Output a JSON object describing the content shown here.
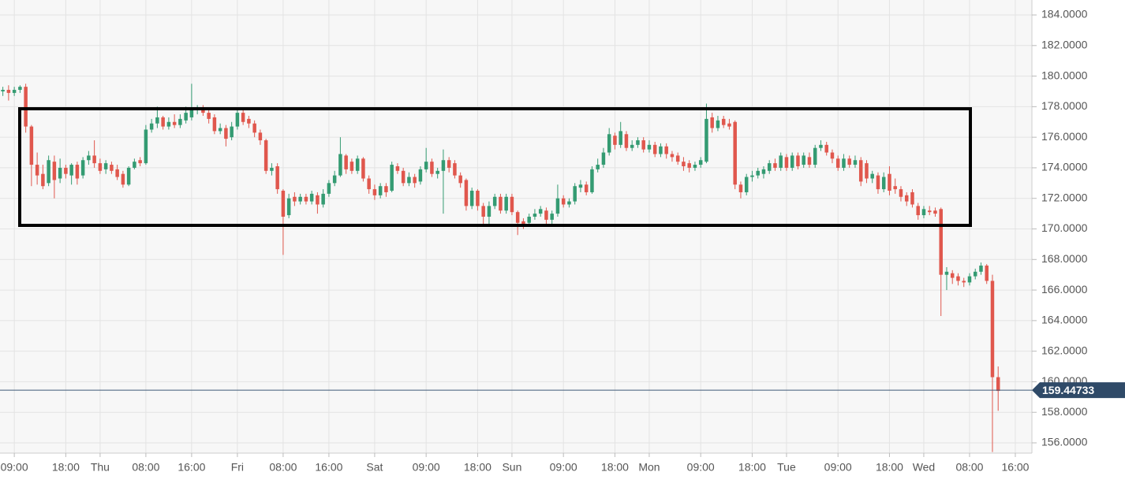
{
  "chart_data": {
    "type": "candlestick",
    "x": [
      -17,
      -16,
      -15,
      -14,
      -13,
      -12,
      -11,
      -10,
      -9,
      -8,
      -7,
      -6,
      -5,
      -4,
      -3,
      -2,
      -1,
      0,
      1,
      2,
      3,
      4,
      5,
      6,
      7,
      8,
      9,
      10,
      11,
      12,
      13,
      14,
      15,
      16,
      17,
      18,
      19,
      20,
      21,
      22,
      23,
      24,
      25,
      26,
      27,
      28,
      29,
      30,
      31,
      32,
      33,
      34,
      35,
      36,
      37,
      38,
      39,
      40,
      41,
      42,
      43,
      44,
      45,
      46,
      47,
      48,
      49,
      50,
      51,
      52,
      53,
      54,
      55,
      56,
      57,
      58,
      59,
      60,
      61,
      62,
      63,
      64,
      65,
      66,
      67,
      68,
      69,
      70,
      71,
      72,
      73,
      74,
      75,
      76,
      77,
      78,
      79,
      80,
      81,
      82,
      83,
      84,
      85,
      86,
      87,
      88,
      89,
      90,
      91,
      92,
      93,
      94,
      95,
      96,
      97,
      98,
      99,
      100,
      101,
      102,
      103,
      104,
      105,
      106,
      107,
      108,
      109,
      110,
      111,
      112,
      113,
      114,
      115,
      116,
      117,
      118,
      119,
      120,
      121,
      122,
      123,
      124,
      125,
      126,
      127,
      128,
      129,
      130,
      131,
      132,
      133,
      134,
      135,
      136,
      137,
      138,
      139,
      140,
      141,
      142,
      143,
      144,
      145,
      146,
      147,
      148,
      149,
      150,
      151,
      152,
      153,
      154,
      155,
      156,
      157
    ],
    "open": [
      179.0,
      179.1,
      178.9,
      179.1,
      179.3,
      176.7,
      174.2,
      173.6,
      173.0,
      174.4,
      173.3,
      174.0,
      173.5,
      174.2,
      173.5,
      174.5,
      174.8,
      174.3,
      173.9,
      174.2,
      173.9,
      173.6,
      172.9,
      174.0,
      174.5,
      174.3,
      176.5,
      176.9,
      177.3,
      176.7,
      177.0,
      176.8,
      177.1,
      177.3,
      177.8,
      177.9,
      177.6,
      177.3,
      176.4,
      176.6,
      176.0,
      176.7,
      177.6,
      177.2,
      176.9,
      176.3,
      175.8,
      173.8,
      174.1,
      172.5,
      170.9,
      172.1,
      171.8,
      172.1,
      171.8,
      172.2,
      171.6,
      172.3,
      173.0,
      173.5,
      174.8,
      174.4,
      173.8,
      174.6,
      173.3,
      172.6,
      172.2,
      172.8,
      172.5,
      174.1,
      173.8,
      173.0,
      173.4,
      173.1,
      173.9,
      174.4,
      173.6,
      173.8,
      174.5,
      174.3,
      173.5,
      173.2,
      171.5,
      172.5,
      171.5,
      170.8,
      171.5,
      172.1,
      171.2,
      172.1,
      171.1,
      170.5,
      170.4,
      170.8,
      171.0,
      171.2,
      170.6,
      171.0,
      172.0,
      171.6,
      171.8,
      172.7,
      172.9,
      172.4,
      173.9,
      174.2,
      175.0,
      176.1,
      175.5,
      176.2,
      175.3,
      175.5,
      175.8,
      175.2,
      175.5,
      174.9,
      175.4,
      174.9,
      174.8,
      174.4,
      174.3,
      174.0,
      174.2,
      174.4,
      177.3,
      176.6,
      177.2,
      176.9,
      177.0,
      172.9,
      172.4,
      173.4,
      173.5,
      173.6,
      173.8,
      174.3,
      174.0,
      174.7,
      174.0,
      174.8,
      174.2,
      174.7,
      174.2,
      175.3,
      175.5,
      175.0,
      174.6,
      174.0,
      174.6,
      174.2,
      174.5,
      174.3,
      173.3,
      173.5,
      172.6,
      173.6,
      172.8,
      172.6,
      172.2,
      172.4,
      171.5,
      170.9,
      171.2,
      171.2,
      171.3,
      167.0,
      167.1,
      166.9,
      166.6,
      166.5,
      166.9,
      167.2,
      167.6,
      166.6,
      160.3
    ],
    "high": [
      179.3,
      179.4,
      179.3,
      179.4,
      179.5,
      176.8,
      175.0,
      174.2,
      174.8,
      174.8,
      174.6,
      174.2,
      174.3,
      174.4,
      174.7,
      175.1,
      175.8,
      174.6,
      174.5,
      174.4,
      174.2,
      173.8,
      174.1,
      174.6,
      174.7,
      176.8,
      177.2,
      178.0,
      177.4,
      177.3,
      177.5,
      177.5,
      178.0,
      179.5,
      178.1,
      178.1,
      177.8,
      177.5,
      176.9,
      176.8,
      177.0,
      177.9,
      177.8,
      177.4,
      177.1,
      176.5,
      175.9,
      174.3,
      174.3,
      172.6,
      172.3,
      172.4,
      172.3,
      172.3,
      172.5,
      172.4,
      172.6,
      173.2,
      173.8,
      176.0,
      174.9,
      174.6,
      174.8,
      174.7,
      173.5,
      172.9,
      173.0,
      173.0,
      174.4,
      174.3,
      174.0,
      173.7,
      173.6,
      174.1,
      175.3,
      174.6,
      174.0,
      175.2,
      174.7,
      174.5,
      173.7,
      173.3,
      172.7,
      172.6,
      171.7,
      171.8,
      172.3,
      172.3,
      172.3,
      172.3,
      171.2,
      170.7,
      171.0,
      171.3,
      171.5,
      171.4,
      171.2,
      172.9,
      172.2,
      172.0,
      173.0,
      173.2,
      173.1,
      174.1,
      174.6,
      175.3,
      176.6,
      176.3,
      177.0,
      176.4,
      175.8,
      176.0,
      176.0,
      175.8,
      175.7,
      175.6,
      175.6,
      175.1,
      175.0,
      174.7,
      174.5,
      174.4,
      174.7,
      178.2,
      177.6,
      177.4,
      177.4,
      177.2,
      177.1,
      173.1,
      173.6,
      173.8,
      174.0,
      174.1,
      174.5,
      174.6,
      175.0,
      174.9,
      175.0,
      175.0,
      175.0,
      175.0,
      175.5,
      175.8,
      175.7,
      175.2,
      174.8,
      174.9,
      174.8,
      174.8,
      174.7,
      174.5,
      173.8,
      173.7,
      173.7,
      174.1,
      173.3,
      172.8,
      172.4,
      172.6,
      171.7,
      171.5,
      171.5,
      171.4,
      171.4,
      167.5,
      167.3,
      167.1,
      166.8,
      167.1,
      167.4,
      167.8,
      167.7,
      167.0,
      161.0
    ],
    "low": [
      178.7,
      178.4,
      178.7,
      178.9,
      176.3,
      172.8,
      172.9,
      172.6,
      172.8,
      172.0,
      173.0,
      173.3,
      172.9,
      172.9,
      173.3,
      174.2,
      174.0,
      173.6,
      173.6,
      173.6,
      173.2,
      172.7,
      172.8,
      173.9,
      174.1,
      174.2,
      176.3,
      176.6,
      176.5,
      176.5,
      176.6,
      176.6,
      176.9,
      177.1,
      177.5,
      177.4,
      176.9,
      176.2,
      176.2,
      175.4,
      175.8,
      176.5,
      176.8,
      176.6,
      176.0,
      175.5,
      173.6,
      173.5,
      172.3,
      168.3,
      170.7,
      171.5,
      171.6,
      171.6,
      171.6,
      171.0,
      171.4,
      172.1,
      172.8,
      173.4,
      173.6,
      173.6,
      173.6,
      173.1,
      172.3,
      171.9,
      172.0,
      172.1,
      172.4,
      173.6,
      172.8,
      172.8,
      172.7,
      172.9,
      173.7,
      173.4,
      173.3,
      171.0,
      173.7,
      173.3,
      172.7,
      171.2,
      171.3,
      171.2,
      170.2,
      170.2,
      171.3,
      171.0,
      171.0,
      170.9,
      169.6,
      170.0,
      170.2,
      170.6,
      170.8,
      170.3,
      170.2,
      170.8,
      171.4,
      171.4,
      171.6,
      172.4,
      172.2,
      172.3,
      173.7,
      174.0,
      174.8,
      175.2,
      175.3,
      175.1,
      175.1,
      175.3,
      175.0,
      175.0,
      174.7,
      174.7,
      174.6,
      174.4,
      174.2,
      173.8,
      173.7,
      173.8,
      174.0,
      174.3,
      176.3,
      176.4,
      176.6,
      176.5,
      172.6,
      172.0,
      172.2,
      173.1,
      173.3,
      173.3,
      173.6,
      173.8,
      173.8,
      173.8,
      173.8,
      173.9,
      174.0,
      174.0,
      174.0,
      175.1,
      174.8,
      174.3,
      173.8,
      173.8,
      174.0,
      174.0,
      172.8,
      173.0,
      173.0,
      172.3,
      172.4,
      172.2,
      172.3,
      171.8,
      171.5,
      171.4,
      170.6,
      170.7,
      170.9,
      170.8,
      164.3,
      166.0,
      166.4,
      166.3,
      166.2,
      166.3,
      166.7,
      167.0,
      166.4,
      155.4,
      158.1
    ],
    "close": [
      179.1,
      178.9,
      179.1,
      179.3,
      176.7,
      174.2,
      173.5,
      172.8,
      174.5,
      173.2,
      174.0,
      173.6,
      174.2,
      173.3,
      174.5,
      174.8,
      174.3,
      173.8,
      174.3,
      173.8,
      173.4,
      172.9,
      174.0,
      174.4,
      174.3,
      176.5,
      176.9,
      177.3,
      176.7,
      177.0,
      176.8,
      177.2,
      177.6,
      177.8,
      177.9,
      177.6,
      177.2,
      176.4,
      176.6,
      175.9,
      176.7,
      177.6,
      177.0,
      176.9,
      176.3,
      175.8,
      173.8,
      174.0,
      172.6,
      170.8,
      172.0,
      171.8,
      172.1,
      171.8,
      172.3,
      171.6,
      172.3,
      173.0,
      173.5,
      174.9,
      173.9,
      173.8,
      174.6,
      173.3,
      172.6,
      172.2,
      172.8,
      172.4,
      174.2,
      173.8,
      173.0,
      173.4,
      173.0,
      173.9,
      174.4,
      173.6,
      173.8,
      174.5,
      174.0,
      173.5,
      173.0,
      171.5,
      172.5,
      171.5,
      170.8,
      171.5,
      172.1,
      171.2,
      172.1,
      171.1,
      170.4,
      170.3,
      170.8,
      171.0,
      171.3,
      170.6,
      171.0,
      172.0,
      171.6,
      171.8,
      172.8,
      172.9,
      172.4,
      173.9,
      174.2,
      175.0,
      176.2,
      175.5,
      176.4,
      175.3,
      175.5,
      175.8,
      175.2,
      175.5,
      174.9,
      175.4,
      174.9,
      174.7,
      174.4,
      174.1,
      174.0,
      174.2,
      174.5,
      177.2,
      176.6,
      177.1,
      176.8,
      176.7,
      172.9,
      172.4,
      173.4,
      173.5,
      173.8,
      173.9,
      174.3,
      174.0,
      174.8,
      174.0,
      174.8,
      174.1,
      174.8,
      174.2,
      175.3,
      175.5,
      175.0,
      174.6,
      174.0,
      174.6,
      174.2,
      174.5,
      173.1,
      173.3,
      173.6,
      172.6,
      173.4,
      172.5,
      172.6,
      172.1,
      171.8,
      171.6,
      170.9,
      171.3,
      171.1,
      171.0,
      167.0,
      167.2,
      166.8,
      166.6,
      166.5,
      166.9,
      167.2,
      167.6,
      166.6,
      160.3,
      159.4
    ],
    "up_color": "#349b72",
    "down_color": "#e0574d",
    "xlim": [
      -17.5,
      162.9
    ],
    "ylim": [
      155.33,
      184.98
    ],
    "xticks": [
      {
        "value": -15,
        "label": "09:00"
      },
      {
        "value": -6,
        "label": "18:00"
      },
      {
        "value": 0,
        "label": "Thu"
      },
      {
        "value": 8,
        "label": "08:00"
      },
      {
        "value": 16,
        "label": "16:00"
      },
      {
        "value": 24,
        "label": "Fri"
      },
      {
        "value": 32,
        "label": "08:00"
      },
      {
        "value": 40,
        "label": "16:00"
      },
      {
        "value": 48,
        "label": "Sat"
      },
      {
        "value": 57,
        "label": "09:00"
      },
      {
        "value": 66,
        "label": "18:00"
      },
      {
        "value": 72,
        "label": "Sun"
      },
      {
        "value": 81,
        "label": "09:00"
      },
      {
        "value": 90,
        "label": "18:00"
      },
      {
        "value": 96,
        "label": "Mon"
      },
      {
        "value": 105,
        "label": "09:00"
      },
      {
        "value": 114,
        "label": "18:00"
      },
      {
        "value": 120,
        "label": "Tue"
      },
      {
        "value": 129,
        "label": "09:00"
      },
      {
        "value": 138,
        "label": "18:00"
      },
      {
        "value": 144,
        "label": "Wed"
      },
      {
        "value": 152,
        "label": "08:00"
      },
      {
        "value": 160,
        "label": "16:00"
      }
    ],
    "yticks": [
      {
        "value": 156,
        "label": "156.0000"
      },
      {
        "value": 158,
        "label": "158.0000"
      },
      {
        "value": 160,
        "label": "160.0000"
      },
      {
        "value": 162,
        "label": "162.0000"
      },
      {
        "value": 164,
        "label": "164.0000"
      },
      {
        "value": 166,
        "label": "166.0000"
      },
      {
        "value": 168,
        "label": "168.0000"
      },
      {
        "value": 170,
        "label": "170.0000"
      },
      {
        "value": 172,
        "label": "172.0000"
      },
      {
        "value": 174,
        "label": "174.0000"
      },
      {
        "value": 176,
        "label": "176.0000"
      },
      {
        "value": 178,
        "label": "178.0000"
      },
      {
        "value": 180,
        "label": "180.0000"
      },
      {
        "value": 182,
        "label": "182.0000"
      },
      {
        "value": 184,
        "label": "184.0000"
      }
    ],
    "last_price": 159.44733,
    "grid": true
  }
}
